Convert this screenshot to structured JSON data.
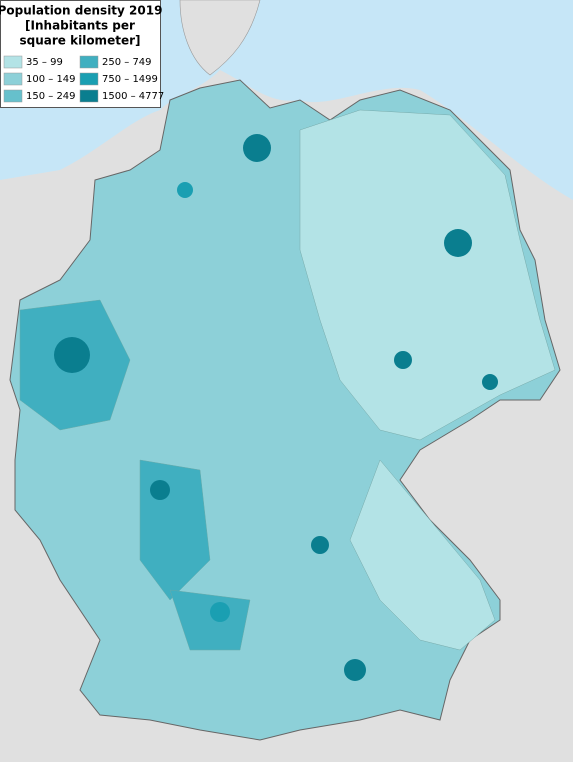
{
  "legend": {
    "title": [
      "Population density 2019",
      "[Inhabitants per",
      "square kilometer]"
    ],
    "items": [
      {
        "label": "35 – 99",
        "color": "#b3e3e6"
      },
      {
        "label": "100 – 149",
        "color": "#8dd0d8"
      },
      {
        "label": "150 – 249",
        "color": "#66c0cc"
      },
      {
        "label": "250 – 749",
        "color": "#40afc0"
      },
      {
        "label": "750 – 1499",
        "color": "#1a9fb2"
      },
      {
        "label": "1500 – 4777",
        "color": "#0a7e8f"
      }
    ]
  }
}
